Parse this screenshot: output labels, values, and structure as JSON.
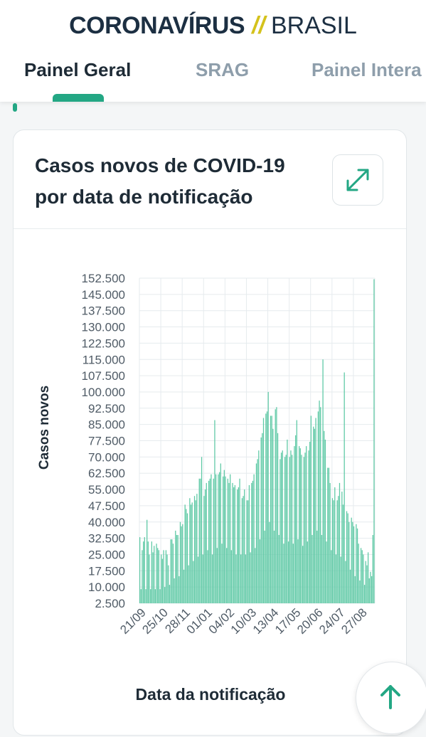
{
  "header": {
    "brand_primary": "CORONAVÍRUS",
    "brand_separator": "//",
    "brand_secondary": "BRASIL",
    "tabs": [
      {
        "label": "Painel Geral",
        "active": true
      },
      {
        "label": "SRAG",
        "active": false
      },
      {
        "label": "Painel Intera",
        "active": false
      }
    ]
  },
  "card": {
    "title": "Casos novos de COVID-19 por data de notificação",
    "expand_icon": "expand-arrows-icon"
  },
  "scroll_top_icon": "arrow-up-icon",
  "colors": {
    "accent": "#23a784",
    "bar": "#5ec9a5",
    "title_dark": "#1c2f42",
    "separator_yellow": "#d4c21c",
    "inactive_tab": "#8e9eab"
  },
  "chart_data": {
    "type": "bar",
    "title": "",
    "xlabel": "Data da notificação",
    "ylabel": "Casos novos",
    "ylim": [
      0,
      152500
    ],
    "yticks": [
      "2.500",
      "10.000",
      "17.500",
      "25.000",
      "32.500",
      "40.000",
      "47.500",
      "55.000",
      "62.500",
      "70.000",
      "77.500",
      "85.000",
      "92.500",
      "100.000",
      "107.500",
      "115.000",
      "122.500",
      "130.000",
      "137.500",
      "145.000",
      "152.500"
    ],
    "xticks": [
      "21/09",
      "25/10",
      "28/11",
      "01/01",
      "04/02",
      "10/03",
      "13/04",
      "17/05",
      "20/06",
      "24/07",
      "27/08"
    ],
    "grid": true,
    "series": [
      {
        "name": "",
        "values": [
          33000,
          9000,
          27000,
          31000,
          33000,
          9000,
          41000,
          31000,
          25000,
          9000,
          31000,
          26000,
          29000,
          9000,
          30000,
          28000,
          27000,
          9000,
          25000,
          23000,
          27000,
          10000,
          27000,
          25000,
          20000,
          11000,
          32000,
          32000,
          30000,
          14000,
          36000,
          34000,
          34000,
          15000,
          40000,
          38000,
          39000,
          18000,
          48000,
          46000,
          44000,
          20000,
          51000,
          48000,
          49000,
          22000,
          52000,
          50000,
          53000,
          24000,
          60000,
          60000,
          70000,
          25000,
          52000,
          55000,
          58000,
          27000,
          59000,
          60000,
          62000,
          25000,
          60000,
          87000,
          62000,
          28000,
          62000,
          63000,
          67000,
          30000,
          61000,
          64000,
          61000,
          28000,
          60000,
          58000,
          62000,
          27000,
          58000,
          56000,
          57000,
          25000,
          55000,
          56000,
          60000,
          25000,
          51000,
          52000,
          55000,
          25000,
          50000,
          50000,
          57000,
          26000,
          58000,
          59000,
          62000,
          28000,
          67000,
          69000,
          73000,
          32000,
          79000,
          81000,
          88000,
          36000,
          90000,
          91000,
          100000,
          40000,
          89000,
          89000,
          83000,
          36000,
          92000,
          93000,
          81000,
          34000,
          69000,
          72000,
          73000,
          30000,
          70000,
          71000,
          78000,
          31000,
          70000,
          73000,
          71000,
          30000,
          75000,
          80000,
          87000,
          32000,
          75000,
          74000,
          71000,
          29000,
          70000,
          72000,
          75000,
          31000,
          73000,
          77000,
          89000,
          34000,
          84000,
          83000,
          88000,
          36000,
          91000,
          96000,
          93000,
          34000,
          115000,
          82000,
          78000,
          31000,
          65000,
          65000,
          58000,
          27000,
          51000,
          50000,
          56000,
          25000,
          50000,
          52000,
          58000,
          24000,
          54000,
          48000,
          109000,
          22000,
          45000,
          44000,
          40000,
          18000,
          42000,
          40000,
          38000,
          15000,
          39000,
          37000,
          30000,
          13000,
          28000,
          27000,
          25000,
          11000,
          22000,
          20000,
          26000,
          14000,
          17000,
          15000,
          34000,
          152000
        ]
      }
    ]
  }
}
